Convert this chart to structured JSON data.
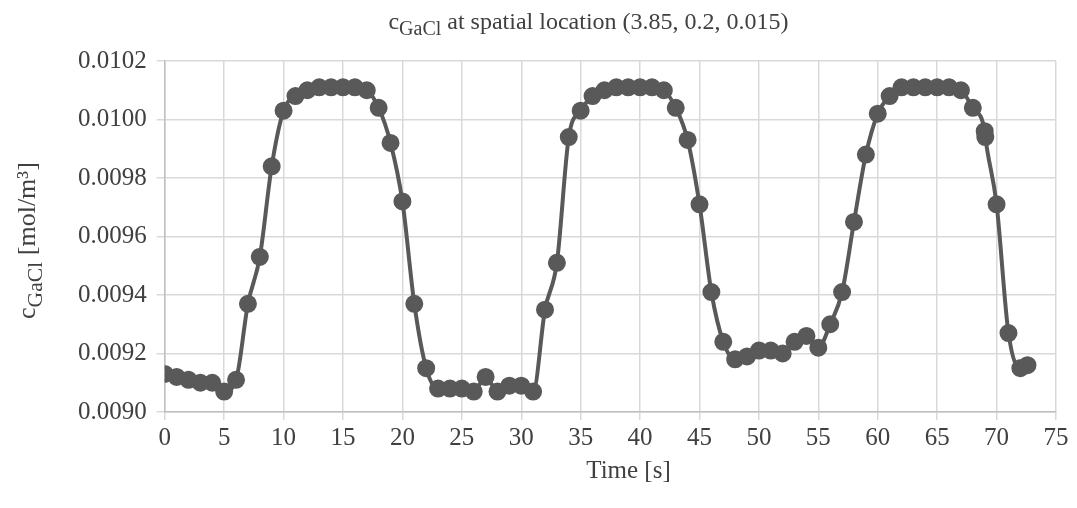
{
  "chart_data": {
    "type": "line",
    "title": "c$_{GaCl}$ at spatial location (3.85, 0.2, 0.015)",
    "xlabel": "Time [s]",
    "ylabel": "c$_{GaCl}$ [mol/m³]",
    "x": [
      0,
      1,
      2,
      3,
      4,
      5,
      6,
      7,
      8,
      9,
      10,
      11,
      12,
      13,
      14,
      15,
      16,
      17,
      18,
      19,
      20,
      21,
      22,
      23,
      24,
      25,
      26,
      27,
      28,
      29,
      30,
      31,
      32,
      33,
      34,
      35,
      36,
      37,
      38,
      39,
      40,
      41,
      42,
      43,
      44,
      45,
      46,
      47,
      48,
      49,
      50,
      51,
      52,
      53,
      54,
      55,
      56,
      57,
      58,
      59,
      60,
      61,
      62,
      63,
      64,
      65,
      66,
      67,
      68,
      69,
      69.05,
      70,
      71,
      72,
      72.6
    ],
    "series": [
      {
        "color": "#595959",
        "values": [
          0.00913,
          0.00912,
          0.00911,
          0.0091,
          0.0091,
          0.00907,
          0.00911,
          0.00937,
          0.00953,
          0.00984,
          0.01003,
          0.01008,
          0.0101,
          0.01011,
          0.01011,
          0.01011,
          0.01011,
          0.0101,
          0.01004,
          0.00992,
          0.00972,
          0.00937,
          0.00915,
          0.00908,
          0.00908,
          0.00908,
          0.00907,
          0.00912,
          0.00907,
          0.00909,
          0.00909,
          0.00907,
          0.00935,
          0.00951,
          0.00994,
          0.01003,
          0.01008,
          0.0101,
          0.01011,
          0.01011,
          0.01011,
          0.01011,
          0.0101,
          0.01004,
          0.00993,
          0.00971,
          0.00941,
          0.00924,
          0.00918,
          0.00919,
          0.00921,
          0.00921,
          0.0092,
          0.00924,
          0.00926,
          0.00922,
          0.0093,
          0.00941,
          0.00965,
          0.00988,
          0.01002,
          0.01008,
          0.01011,
          0.01011,
          0.01011,
          0.01011,
          0.01011,
          0.0101,
          0.01004,
          0.00996,
          0.00994,
          0.00971,
          0.00927,
          0.00915,
          0.00916
        ]
      }
    ],
    "xlim": [
      0,
      75
    ],
    "xticks": [
      0,
      5,
      10,
      15,
      20,
      25,
      30,
      35,
      40,
      45,
      50,
      55,
      60,
      65,
      70,
      75
    ],
    "ylim": [
      0.009,
      0.0102
    ],
    "yticks": [
      {
        "value": 0.009,
        "label": "0.0090"
      },
      0.0092,
      0.0094,
      0.0096,
      0.0098,
      {
        "value": 0.01,
        "label": "0.0100"
      },
      0.0102
    ],
    "grid": true,
    "marker": "circle",
    "line_style": "solid",
    "legend": false
  }
}
